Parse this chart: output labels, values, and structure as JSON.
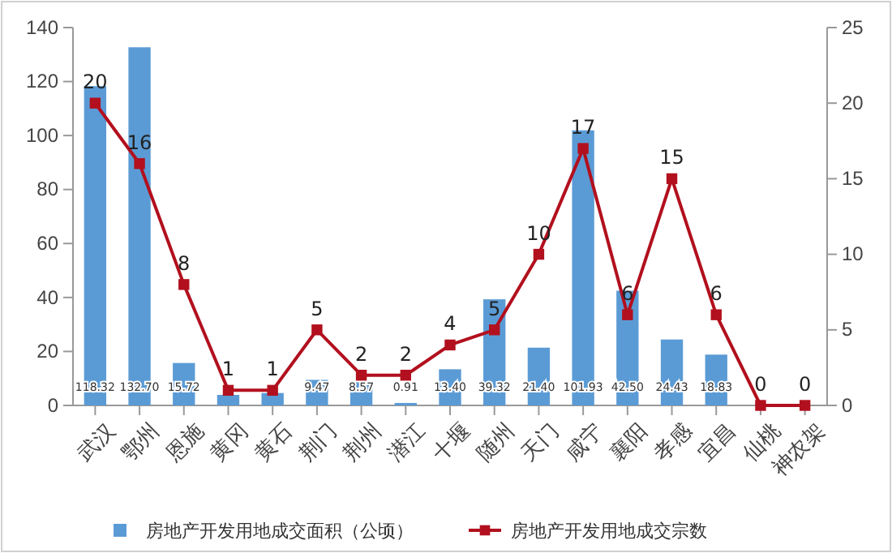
{
  "chart_data": {
    "type": "bar",
    "categories": [
      "武汉",
      "鄂州",
      "恩施",
      "黄冈",
      "黄石",
      "荆门",
      "荆州",
      "潜江",
      "十堰",
      "随州",
      "天门",
      "咸宁",
      "襄阳",
      "孝感",
      "宜昌",
      "仙桃",
      "神农架"
    ],
    "series": [
      {
        "name": "房地产开发用地成交面积（公顷）",
        "color": "#5b9bd5",
        "values": [
          118.32,
          132.7,
          15.72,
          3.9,
          4.6,
          9.47,
          8.57,
          0.91,
          13.4,
          39.32,
          21.4,
          101.93,
          42.5,
          24.43,
          18.83,
          0,
          0
        ],
        "value_labels": [
          "118.32",
          "132.70",
          "15.72",
          null,
          null,
          "9.47",
          "8.57",
          "0.91",
          "13.40",
          "39.32",
          "21.40",
          "101.93",
          "42.50",
          "24.43",
          "18.83",
          null,
          null
        ]
      },
      {
        "name": "房地产开发用地成交宗数",
        "type": "line",
        "axis": "y2",
        "color": "#b2101e",
        "marker": "square",
        "values": [
          20,
          16,
          8,
          1,
          1,
          5,
          2,
          2,
          4,
          5,
          10,
          17,
          6,
          15,
          6,
          0,
          0
        ],
        "value_labels": [
          "20",
          "16",
          "8",
          "1",
          "1",
          "5",
          "2",
          "2",
          "4",
          "5",
          "10",
          "17",
          "6",
          "15",
          "6",
          "0",
          "0"
        ]
      }
    ],
    "ylim": [
      0,
      140
    ],
    "yticks": [
      0,
      20,
      40,
      60,
      80,
      100,
      120,
      140
    ],
    "y2lim": [
      0,
      25
    ],
    "y2ticks": [
      0,
      5,
      10,
      15,
      20,
      25
    ],
    "grid": false,
    "legend": "bottom"
  }
}
